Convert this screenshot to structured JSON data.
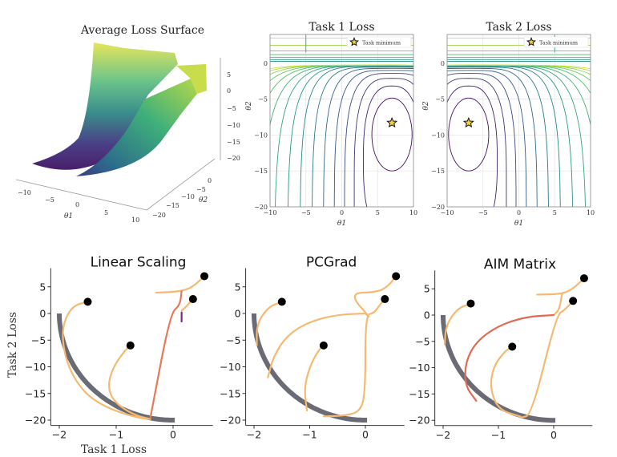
{
  "chart_data": [
    {
      "type": "surface3d",
      "title": "Average Loss Surface",
      "xlabel": "θ1",
      "ylabel": "θ2",
      "xticks": [
        "−10",
        "−5",
        "0",
        "5",
        "10"
      ],
      "yticks": [
        "0",
        "−5",
        "−10",
        "−15",
        "−20"
      ],
      "zticks": [
        "5",
        "0",
        "−5",
        "−10",
        "−15",
        "−20"
      ],
      "colormap": "viridis"
    },
    {
      "type": "contour",
      "title": "Task 1 Loss",
      "xlabel": "θ1",
      "ylabel": "θ2",
      "xlim": [
        -10,
        10
      ],
      "ylim": [
        -20,
        4
      ],
      "xticks": [
        "−10",
        "−5",
        "0",
        "5",
        "10"
      ],
      "yticks": [
        "0",
        "−5",
        "−10",
        "−15",
        "−20"
      ],
      "minimum": [
        7,
        -8.3
      ],
      "legend": "Task minimum",
      "legend_position": "top-right",
      "grid": true,
      "colormap": "viridis"
    },
    {
      "type": "contour",
      "title": "Task 2 Loss",
      "xlabel": "θ1",
      "ylabel": "θ2",
      "xlim": [
        -10,
        10
      ],
      "ylim": [
        -20,
        4
      ],
      "xticks": [
        "−10",
        "−5",
        "0",
        "5",
        "10"
      ],
      "yticks": [
        "0",
        "−5",
        "−10",
        "−15",
        "−20"
      ],
      "minimum": [
        -7,
        -8.3
      ],
      "legend": "Task minimum",
      "legend_position": "top-right",
      "grid": true,
      "colormap": "viridis"
    },
    {
      "type": "line",
      "title": "Linear Scaling",
      "xlabel": "Task 1 Loss",
      "ylabel": "Task 2 Loss",
      "xlim": [
        -2.15,
        0.7
      ],
      "ylim": [
        -21,
        8.5
      ],
      "xticks": [
        "−2",
        "−1",
        "0"
      ],
      "yticks": [
        "5",
        "0",
        "−5",
        "−10",
        "−15",
        "−20"
      ],
      "starts": [
        [
          -1.5,
          2.2
        ],
        [
          0.55,
          7
        ],
        [
          0.35,
          2.7
        ],
        [
          -0.75,
          -6
        ]
      ],
      "trajectories": [
        {
          "color": "#f5b971",
          "points": [
            [
              -1.5,
              2.2
            ],
            [
              -1.75,
              1.5
            ],
            [
              -1.9,
              -1
            ],
            [
              -1.95,
              -4
            ],
            [
              -1.9,
              -8
            ],
            [
              -1.75,
              -12
            ],
            [
              -1.5,
              -15.5
            ],
            [
              -1.1,
              -18
            ],
            [
              -0.6,
              -19.6
            ],
            [
              -0.4,
              -19.8
            ]
          ]
        },
        {
          "color": "#f5b971",
          "points": [
            [
              -0.75,
              -6
            ],
            [
              -0.85,
              -7
            ],
            [
              -1.05,
              -10
            ],
            [
              -1.15,
              -13.5
            ],
            [
              -1.05,
              -16.5
            ],
            [
              -0.7,
              -19
            ],
            [
              -0.4,
              -19.8
            ]
          ]
        },
        {
          "color": "#f5b971",
          "points": [
            [
              0.55,
              7
            ],
            [
              0.35,
              5
            ],
            [
              0.15,
              4.2
            ],
            [
              -0.1,
              4
            ],
            [
              -0.3,
              3.9
            ]
          ]
        },
        {
          "color": "#e8785a",
          "points": [
            [
              0.15,
              4.2
            ],
            [
              0.12,
              1.5
            ],
            [
              -0.05,
              0
            ],
            [
              -0.4,
              -19.6
            ]
          ]
        },
        {
          "color": "#f5b971",
          "points": [
            [
              0.35,
              2.7
            ],
            [
              0.25,
              1.5
            ],
            [
              0.15,
              0.5
            ]
          ]
        },
        {
          "color": "#7b2a8c",
          "points": [
            [
              0.15,
              0.2
            ],
            [
              0.15,
              -1.5
            ]
          ]
        }
      ]
    },
    {
      "type": "line",
      "title": "PCGrad",
      "xlim": [
        -2.15,
        0.7
      ],
      "ylim": [
        -21,
        8.5
      ],
      "xticks": [
        "−2",
        "−1",
        "0"
      ],
      "yticks": [
        "5",
        "0",
        "−5",
        "−10",
        "−15",
        "−20"
      ],
      "starts": [
        [
          -1.5,
          2.2
        ],
        [
          0.55,
          7
        ],
        [
          0.35,
          2.7
        ],
        [
          -0.75,
          -6
        ]
      ],
      "trajectories": [
        {
          "color": "#f5b971",
          "points": [
            [
              -1.5,
              2.2
            ],
            [
              -1.75,
              1.2
            ],
            [
              -1.95,
              -2
            ],
            [
              -1.95,
              -6
            ]
          ]
        },
        {
          "color": "#f5b971",
          "points": [
            [
              0.55,
              7
            ],
            [
              0.4,
              5
            ],
            [
              0.2,
              4
            ],
            [
              -0.3,
              3.8
            ],
            [
              0.1,
              -1
            ],
            [
              0,
              0
            ]
          ]
        },
        {
          "color": "#f5b971",
          "points": [
            [
              0,
              0
            ],
            [
              -0.5,
              -0.2
            ],
            [
              -1,
              -1.5
            ],
            [
              -1.4,
              -4
            ],
            [
              -1.65,
              -8
            ],
            [
              -1.75,
              -12
            ]
          ]
        },
        {
          "color": "#f5b971",
          "points": [
            [
              0.35,
              2.7
            ],
            [
              0.25,
              1.5
            ],
            [
              0.15,
              0
            ],
            [
              0,
              -0.2
            ],
            [
              0,
              -15
            ],
            [
              -0.1,
              -18.5
            ],
            [
              -0.4,
              -19.2
            ],
            [
              -0.75,
              -19.3
            ]
          ]
        },
        {
          "color": "#f5b971",
          "points": [
            [
              -0.75,
              -6
            ],
            [
              -0.85,
              -7
            ],
            [
              -1,
              -10
            ],
            [
              -1.1,
              -14
            ],
            [
              -1.05,
              -18.2
            ]
          ]
        }
      ]
    },
    {
      "type": "line",
      "title": "AIM Matrix",
      "xlim": [
        -2.15,
        0.7
      ],
      "ylim": [
        -21,
        8.5
      ],
      "xticks": [
        "−2",
        "−1",
        "0"
      ],
      "yticks": [
        "5",
        "0",
        "−5",
        "−10",
        "−15",
        "−20"
      ],
      "starts": [
        [
          -1.5,
          2.2
        ],
        [
          0.55,
          7
        ],
        [
          0.35,
          2.7
        ],
        [
          -0.75,
          -6
        ]
      ],
      "trajectories": [
        {
          "color": "#f5b971",
          "points": [
            [
              -1.5,
              2.2
            ],
            [
              -1.75,
              1.2
            ],
            [
              -1.95,
              -2
            ],
            [
              -1.97,
              -5.5
            ]
          ]
        },
        {
          "color": "#f5b971",
          "points": [
            [
              0.55,
              7
            ],
            [
              0.35,
              5
            ],
            [
              0.15,
              4
            ],
            [
              -0.3,
              3.9
            ]
          ]
        },
        {
          "color": "#f5b971",
          "points": [
            [
              0.15,
              4
            ],
            [
              0.1,
              1
            ],
            [
              0,
              0
            ]
          ]
        },
        {
          "color": "#e06a52",
          "points": [
            [
              0,
              0
            ],
            [
              -0.5,
              -0.3
            ],
            [
              -1,
              -2
            ],
            [
              -1.4,
              -5
            ],
            [
              -1.6,
              -9
            ],
            [
              -1.6,
              -13.5
            ],
            [
              -1.4,
              -16.3
            ]
          ]
        },
        {
          "color": "#f5b971",
          "points": [
            [
              0.35,
              2.7
            ],
            [
              0.2,
              1
            ],
            [
              0.05,
              0
            ],
            [
              -0.4,
              -19
            ],
            [
              -0.6,
              -19.5
            ]
          ]
        },
        {
          "color": "#f5b971",
          "points": [
            [
              -0.75,
              -6
            ],
            [
              -0.9,
              -7
            ],
            [
              -1.1,
              -10
            ],
            [
              -1.15,
              -14
            ],
            [
              -1,
              -18
            ],
            [
              -0.6,
              -19.3
            ]
          ]
        }
      ]
    }
  ],
  "colors": {
    "pareto_front": "#6b6b76",
    "start_marker": "#000000",
    "star": "#f4d03f"
  }
}
